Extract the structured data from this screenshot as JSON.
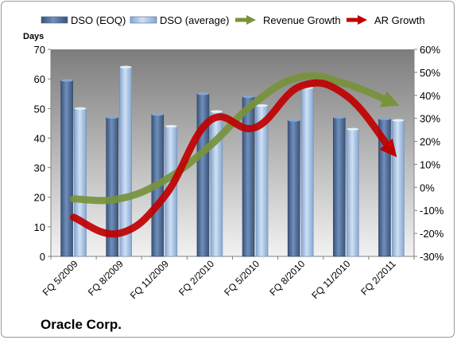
{
  "chart_data": {
    "type": "bar",
    "title": "",
    "subtitle": "Oracle Corp.",
    "categories": [
      "FQ 5/2009",
      "FQ 8/2009",
      "FQ 11/2009",
      "FQ 2/2010",
      "FQ 5/2010",
      "FQ 8/2010",
      "FQ 11/2010",
      "FQ 2/2011"
    ],
    "ylabel": "Days",
    "ylim": [
      0,
      70
    ],
    "yticks": [
      0,
      10,
      20,
      30,
      40,
      50,
      60,
      70
    ],
    "y2lim": [
      -30,
      60
    ],
    "y2ticks": [
      "-30%",
      "-20%",
      "-10%",
      "0%",
      "10%",
      "20%",
      "30%",
      "40%",
      "50%",
      "60%"
    ],
    "y2tick_values": [
      -30,
      -20,
      -10,
      0,
      10,
      20,
      30,
      40,
      50,
      60
    ],
    "series": [
      {
        "name": "DSO (EOQ)",
        "type": "bar",
        "axis": "left",
        "color": "#4f6c98",
        "values": [
          59.5,
          47,
          48,
          55,
          54,
          46,
          47,
          46.5
        ]
      },
      {
        "name": "DSO (average)",
        "type": "bar",
        "axis": "left",
        "color": "#a9c4e4",
        "values": [
          50,
          64,
          44,
          49,
          51,
          57,
          43,
          46
        ]
      },
      {
        "name": "Revenue Growth",
        "type": "line",
        "axis": "right",
        "color": "#77933c",
        "values": [
          -5,
          -5,
          3,
          18,
          37,
          48,
          45,
          37
        ]
      },
      {
        "name": "AR Growth",
        "type": "line",
        "axis": "right",
        "color": "#c00000",
        "values": [
          -13,
          -20,
          -4,
          29,
          26,
          44,
          40,
          16
        ]
      }
    ],
    "legend": "top",
    "grid": false
  }
}
